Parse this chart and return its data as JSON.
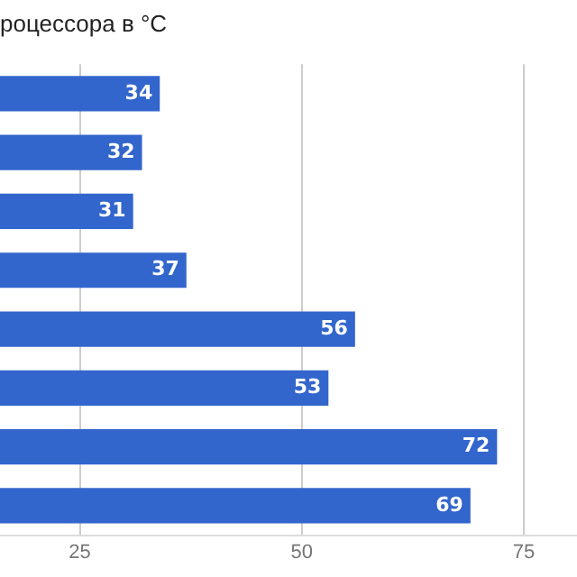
{
  "chart_data": {
    "type": "bar",
    "orientation": "horizontal",
    "title": "роцессора в °C",
    "categories": [
      null,
      null,
      null,
      null,
      null,
      null,
      null,
      null
    ],
    "values": [
      34,
      32,
      31,
      37,
      56,
      53,
      72,
      69
    ],
    "color": "#3366cc",
    "xlim": [
      16,
      81
    ],
    "xticks": [
      25,
      50,
      75
    ],
    "grid": "x",
    "data_labels": true,
    "legend": false
  }
}
